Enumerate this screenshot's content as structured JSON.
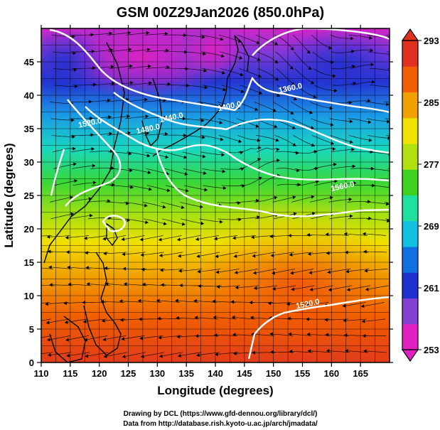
{
  "title": "GSM 00Z29Jan2026 (850.0hPa)",
  "x_axis": {
    "label": "Longitude (degrees)",
    "range": [
      110,
      170
    ],
    "ticks": [
      110,
      115,
      120,
      125,
      130,
      135,
      140,
      145,
      150,
      155,
      160,
      165
    ]
  },
  "y_axis": {
    "label": "Latitude  (degrees)",
    "range": [
      0,
      50
    ],
    "ticks": [
      0,
      5,
      10,
      15,
      20,
      25,
      30,
      35,
      40,
      45
    ]
  },
  "colorbar": {
    "range": [
      253,
      293
    ],
    "ticks": [
      253,
      261,
      269,
      277,
      285,
      293
    ],
    "colors": [
      "#e020c0",
      "#8040d0",
      "#2030d0",
      "#1070e0",
      "#10c0e0",
      "#20e0a0",
      "#40d020",
      "#b0e010",
      "#f0e000",
      "#f0a000",
      "#f06000",
      "#e03020"
    ]
  },
  "contours": [
    {
      "label": "1360.0",
      "lon": 153.0,
      "lat": 40.7
    },
    {
      "label": "1400.0",
      "lon": 142.5,
      "lat": 38.0
    },
    {
      "label": "1440.0",
      "lon": 132.5,
      "lat": 36.3
    },
    {
      "label": "1480.0",
      "lon": 128.5,
      "lat": 34.6
    },
    {
      "label": "1520.0",
      "lon": 118.5,
      "lat": 35.5
    },
    {
      "label": "1520.0",
      "lon": 156.0,
      "lat": 8.4
    },
    {
      "label": "1560.0",
      "lon": 162.0,
      "lat": 26.0
    }
  ],
  "credits": {
    "line1": "Drawing by DCL (https://www.gfd-dennou.org/library/dcl/)",
    "line2": "Data from http://database.rish.kyoto-u.ac.jp/arch/jmadata/"
  }
}
